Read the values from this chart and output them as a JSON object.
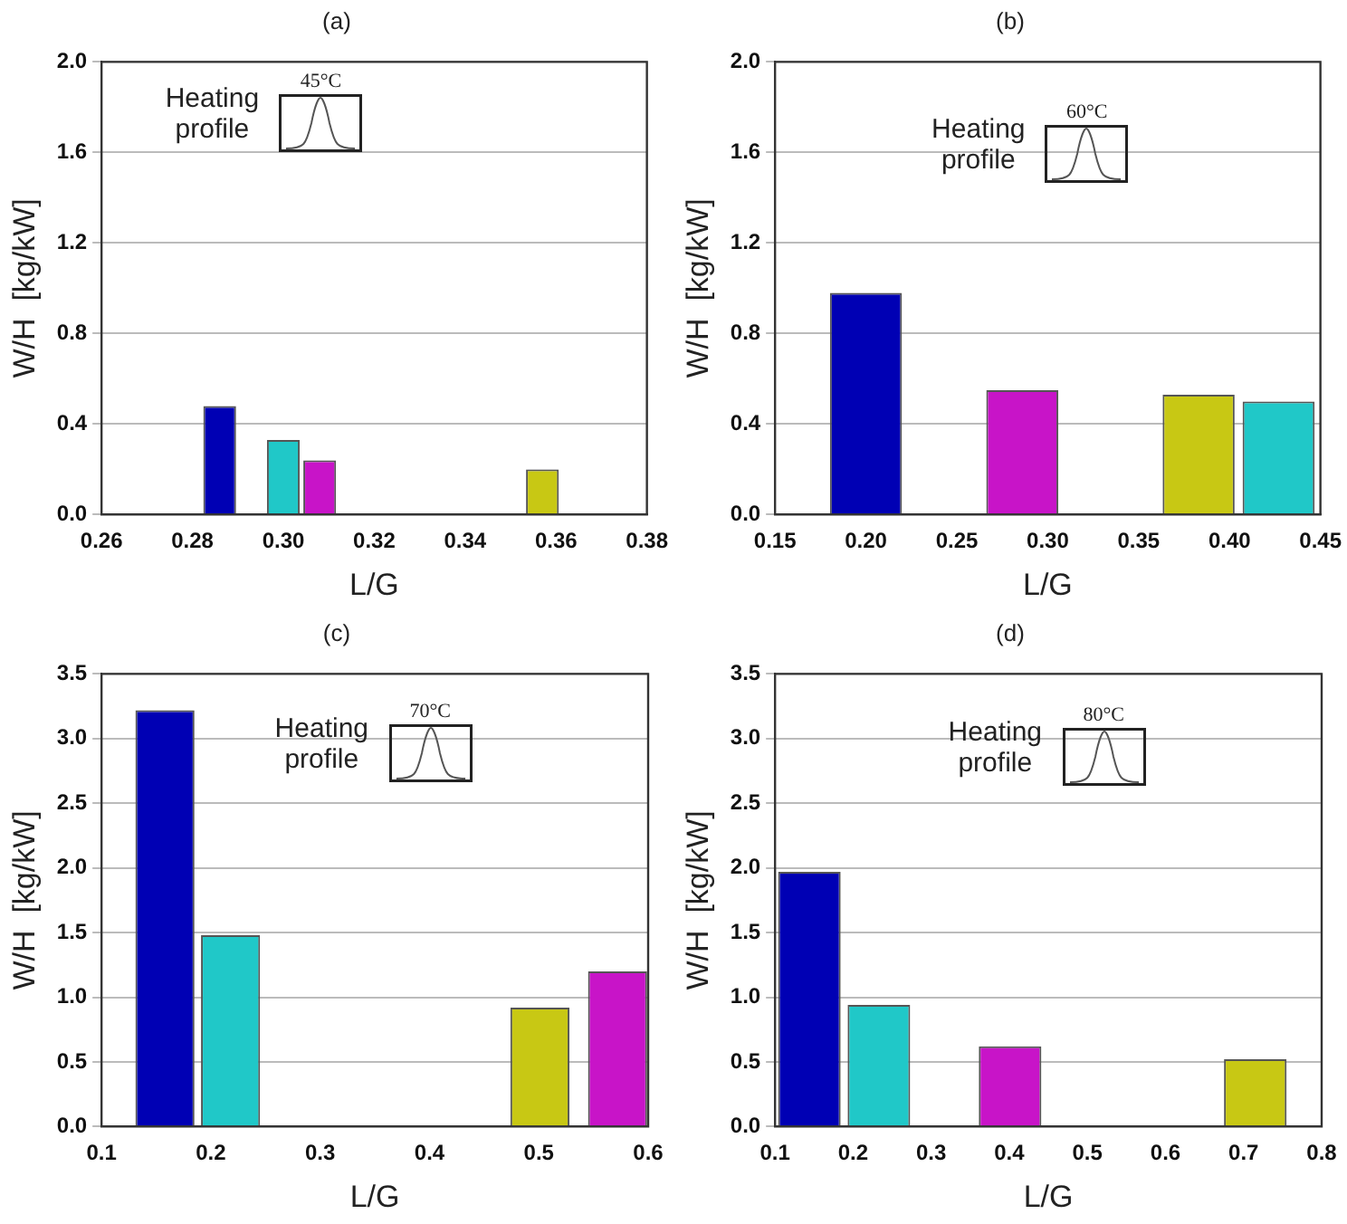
{
  "chart_data": [
    {
      "type": "bar",
      "title": "(a)",
      "xlabel": "L/G",
      "ylabel": "W/H  [kg/kW]",
      "annotations": [
        "Heating profile",
        "45°C"
      ],
      "x": [
        0.286,
        0.3,
        0.308,
        0.357
      ],
      "values": [
        0.48,
        0.33,
        0.24,
        0.2
      ],
      "colors": [
        "#0000b4",
        "#20c8c8",
        "#c814c8",
        "#c8c814"
      ],
      "xlim": [
        0.26,
        0.38
      ],
      "xticks": [
        0.26,
        0.28,
        {
          "value": 0.3,
          "label": "0.30"
        },
        0.32,
        0.34,
        0.36,
        0.38
      ],
      "ylim": [
        0,
        2
      ],
      "yticks": [
        {
          "value": 0,
          "label": "0.0"
        },
        0.4,
        0.8,
        1.2,
        1.6,
        {
          "value": 2,
          "label": "2.0"
        }
      ],
      "grid": "y"
    },
    {
      "type": "bar",
      "title": "(b)",
      "xlabel": "L/G",
      "ylabel": "W/H  [kg/kW]",
      "annotations": [
        "Heating profile",
        "60°C"
      ],
      "x": [
        0.2,
        0.286,
        0.383,
        0.427
      ],
      "values": [
        0.98,
        0.55,
        0.53,
        0.5
      ],
      "colors": [
        "#0000b4",
        "#c814c8",
        "#c8c814",
        "#20c8c8"
      ],
      "xlim": [
        0.15,
        0.45
      ],
      "xticks": [
        0.15,
        {
          "value": 0.2,
          "label": "0.20"
        },
        0.25,
        {
          "value": 0.3,
          "label": "0.30"
        },
        0.35,
        {
          "value": 0.4,
          "label": "0.40"
        },
        0.45
      ],
      "ylim": [
        0,
        2
      ],
      "yticks": [
        {
          "value": 0,
          "label": "0.0"
        },
        0.4,
        0.8,
        1.2,
        1.6,
        {
          "value": 2,
          "label": "2.0"
        }
      ],
      "grid": "y"
    },
    {
      "type": "bar",
      "title": "(c)",
      "xlabel": "L/G",
      "ylabel": "W/H  [kg/kW]",
      "annotations": [
        "Heating profile",
        "70°C"
      ],
      "x": [
        0.158,
        0.218,
        0.501,
        0.572
      ],
      "values": [
        3.22,
        1.48,
        0.92,
        1.2
      ],
      "colors": [
        "#0000b4",
        "#20c8c8",
        "#c8c814",
        "#c814c8"
      ],
      "xlim": [
        0.1,
        0.6
      ],
      "xticks": [
        0.1,
        0.2,
        0.3,
        0.4,
        0.5,
        0.6
      ],
      "ylim": [
        0,
        3.5
      ],
      "yticks": [
        {
          "value": 0,
          "label": "0.0"
        },
        0.5,
        {
          "value": 1,
          "label": "1.0"
        },
        1.5,
        {
          "value": 2,
          "label": "2.0"
        },
        2.5,
        {
          "value": 3,
          "label": "3.0"
        },
        3.5
      ],
      "grid": "y"
    },
    {
      "type": "bar",
      "title": "(d)",
      "xlabel": "L/G",
      "ylabel": "W/H  [kg/kW]",
      "annotations": [
        "Heating profile",
        "80°C"
      ],
      "x": [
        0.144,
        0.233,
        0.401,
        0.715
      ],
      "values": [
        1.97,
        0.94,
        0.62,
        0.52
      ],
      "colors": [
        "#0000b4",
        "#20c8c8",
        "#c814c8",
        "#c8c814"
      ],
      "xlim": [
        0.1,
        0.8
      ],
      "xticks": [
        0.1,
        0.2,
        0.3,
        0.4,
        0.5,
        0.6,
        0.7,
        0.8
      ],
      "ylim": [
        0,
        3.5
      ],
      "yticks": [
        {
          "value": 0,
          "label": "0.0"
        },
        0.5,
        {
          "value": 1,
          "label": "1.0"
        },
        1.5,
        {
          "value": 2,
          "label": "2.0"
        },
        2.5,
        {
          "value": 3,
          "label": "3.0"
        },
        3.5
      ],
      "grid": "y"
    }
  ]
}
